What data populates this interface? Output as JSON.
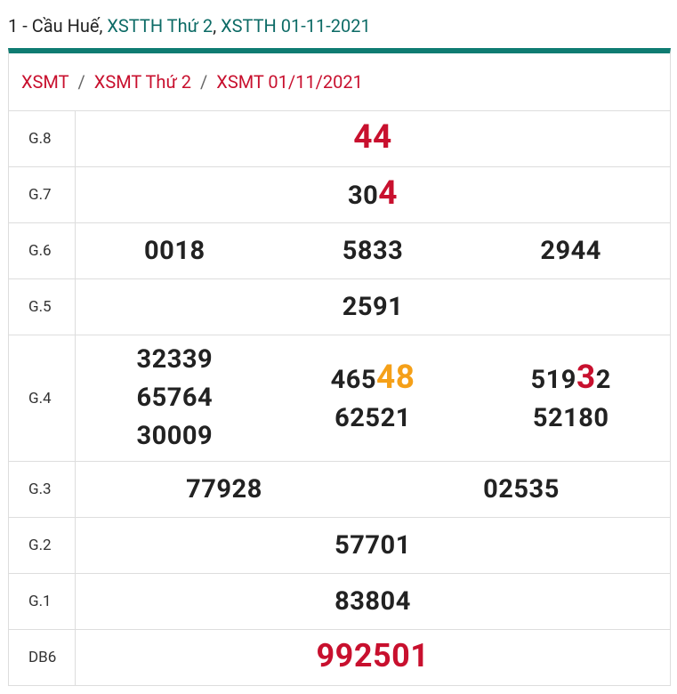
{
  "header": {
    "prefix": "1 - Cầu Huế,",
    "link1": "XSTTH Thứ 2",
    "sep": ",",
    "link2": "XSTTH 01-11-2021"
  },
  "breadcrumb": {
    "items": [
      "XSMT",
      "XSMT Thứ 2",
      "XSMT 01/11/2021"
    ],
    "separator": "/"
  },
  "table": {
    "rows": [
      {
        "label": "G.8",
        "columns": [
          [
            [
              {
                "text": "44",
                "style": "red"
              }
            ]
          ]
        ]
      },
      {
        "label": "G.7",
        "columns": [
          [
            [
              {
                "text": "30",
                "style": "plain"
              },
              {
                "text": "4",
                "style": "red"
              }
            ]
          ]
        ]
      },
      {
        "label": "G.6",
        "columns": [
          [
            [
              {
                "text": "0018",
                "style": "plain"
              }
            ]
          ],
          [
            [
              {
                "text": "5833",
                "style": "plain"
              }
            ]
          ],
          [
            [
              {
                "text": "2944",
                "style": "plain"
              }
            ]
          ]
        ]
      },
      {
        "label": "G.5",
        "columns": [
          [
            [
              {
                "text": "2591",
                "style": "plain"
              }
            ]
          ]
        ]
      },
      {
        "label": "G.4",
        "columns": [
          [
            [
              {
                "text": "32339",
                "style": "plain"
              }
            ],
            [
              {
                "text": "65764",
                "style": "plain"
              }
            ],
            [
              {
                "text": "30009",
                "style": "plain"
              }
            ]
          ],
          [
            [
              {
                "text": "465",
                "style": "plain"
              },
              {
                "text": "48",
                "style": "orange"
              }
            ],
            [
              {
                "text": "62521",
                "style": "plain"
              }
            ]
          ],
          [
            [
              {
                "text": "519",
                "style": "plain"
              },
              {
                "text": "3",
                "style": "red"
              },
              {
                "text": "2",
                "style": "plain"
              }
            ],
            [
              {
                "text": "52180",
                "style": "plain"
              }
            ]
          ]
        ]
      },
      {
        "label": "G.3",
        "columns": [
          [
            [
              {
                "text": "77928",
                "style": "plain"
              }
            ]
          ],
          [
            [
              {
                "text": "02535",
                "style": "plain"
              }
            ]
          ]
        ]
      },
      {
        "label": "G.2",
        "columns": [
          [
            [
              {
                "text": "57701",
                "style": "plain"
              }
            ]
          ]
        ]
      },
      {
        "label": "G.1",
        "columns": [
          [
            [
              {
                "text": "83804",
                "style": "plain"
              }
            ]
          ]
        ]
      },
      {
        "label": "DB6",
        "columns": [
          [
            [
              {
                "text": "992501",
                "style": "special"
              }
            ]
          ]
        ]
      }
    ]
  }
}
